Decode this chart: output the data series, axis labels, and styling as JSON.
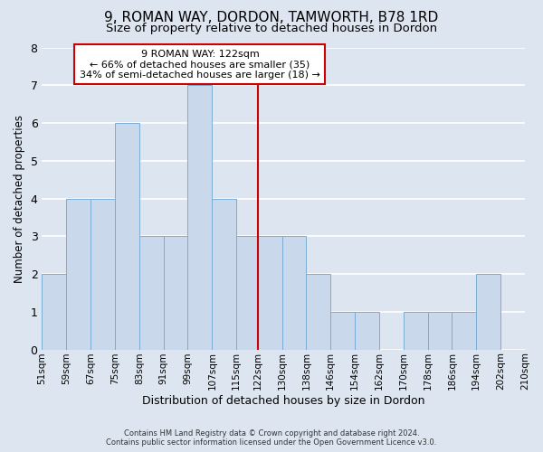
{
  "title": "9, ROMAN WAY, DORDON, TAMWORTH, B78 1RD",
  "subtitle": "Size of property relative to detached houses in Dordon",
  "xlabel": "Distribution of detached houses by size in Dordon",
  "ylabel": "Number of detached properties",
  "bar_edges": [
    51,
    59,
    67,
    75,
    83,
    91,
    99,
    107,
    115,
    122,
    130,
    138,
    146,
    154,
    162,
    170,
    178,
    186,
    194,
    202,
    210
  ],
  "bar_heights": [
    2,
    4,
    4,
    6,
    3,
    3,
    7,
    4,
    3,
    3,
    3,
    2,
    1,
    1,
    0,
    1,
    1,
    1,
    2,
    0
  ],
  "bar_color": "#c9d9eb",
  "bar_edgecolor": "#7aadd4",
  "marker_value": 122,
  "marker_color": "#cc0000",
  "ylim": [
    0,
    8
  ],
  "yticks": [
    0,
    1,
    2,
    3,
    4,
    5,
    6,
    7,
    8
  ],
  "annotation_title": "9 ROMAN WAY: 122sqm",
  "annotation_line1": "← 66% of detached houses are smaller (35)",
  "annotation_line2": "34% of semi-detached houses are larger (18) →",
  "annotation_box_edgecolor": "#cc0000",
  "footnote1": "Contains HM Land Registry data © Crown copyright and database right 2024.",
  "footnote2": "Contains public sector information licensed under the Open Government Licence v3.0.",
  "bg_color": "#dde6f0",
  "plot_bg_color": "#dde6f0",
  "title_fontsize": 11,
  "subtitle_fontsize": 9.5,
  "tick_label_fontsize": 7.5,
  "ylabel_fontsize": 8.5,
  "xlabel_fontsize": 9
}
